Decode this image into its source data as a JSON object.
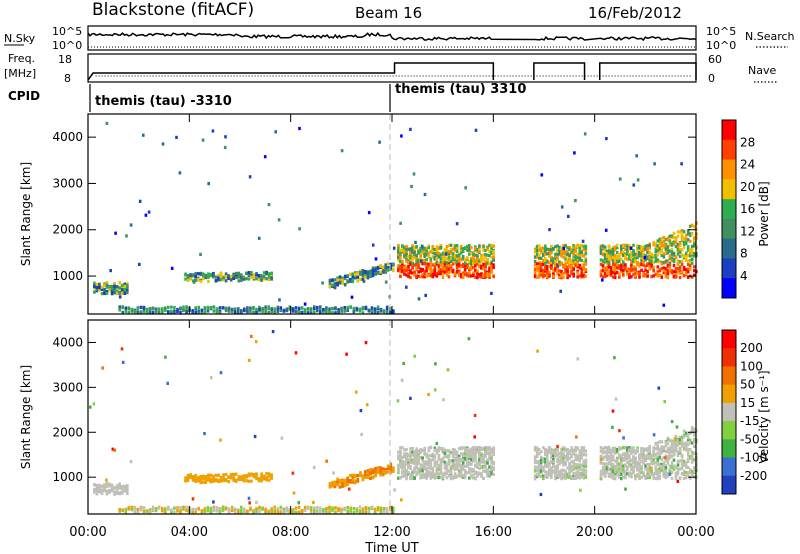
{
  "header": {
    "radar": "Blackstone (fitACF)",
    "beam": "Beam 16",
    "date": "16/Feb/2012"
  },
  "panels": {
    "nsky": {
      "left_label": "N.Sky",
      "tick_top": "10^5",
      "tick_bottom": "10^0",
      "right_tick_top": "10^5",
      "right_tick_bottom": "10^0",
      "right_label": "N.Search"
    },
    "freq": {
      "left_label_1": "Freq.",
      "left_label_2": "[MHz]",
      "tick_top": "18",
      "tick_bottom": "8",
      "right_tick_top": "60",
      "right_tick_bottom": "0",
      "right_label": "Nave"
    },
    "cpid": {
      "label": "CPID",
      "segments": [
        "themis (tau) -3310",
        "themis (tau) 3310"
      ]
    }
  },
  "colors": {
    "power_scale": [
      "#0000ff",
      "#1a3fbf",
      "#2a6a8a",
      "#3f8f5f",
      "#2fae4f",
      "#f0c000",
      "#ff9000",
      "#ff4000",
      "#ff0000"
    ],
    "velocity_scale": [
      "#2040c0",
      "#3a70d0",
      "#40b040",
      "#80d040",
      "#c0c0b8",
      "#f0a000",
      "#f07000",
      "#f03000",
      "#ff0000"
    ]
  },
  "chart_data": [
    {
      "type": "heatmap",
      "name": "power",
      "ylabel": "Slant Range [km]",
      "ylim": [
        180,
        4500
      ],
      "y_ticks": [
        "1000",
        "2000",
        "3000",
        "4000"
      ],
      "x_ticks": [
        "00:00",
        "04:00",
        "08:00",
        "12:00",
        "16:00",
        "20:00",
        "00:00"
      ],
      "colorbar_label": "Power [dB]",
      "colorbar_ticks": [
        "4",
        "8",
        "12",
        "16",
        "20",
        "24",
        "28"
      ],
      "colorbar_range": [
        0,
        30
      ]
    },
    {
      "type": "heatmap",
      "name": "velocity",
      "ylabel": "Slant Range [km]",
      "xlabel": "Time UT",
      "ylim": [
        180,
        4500
      ],
      "y_ticks": [
        "1000",
        "2000",
        "3000",
        "4000"
      ],
      "x_ticks": [
        "00:00",
        "04:00",
        "08:00",
        "12:00",
        "16:00",
        "20:00",
        "00:00"
      ],
      "colorbar_label": "Velocity [m s⁻¹]",
      "colorbar_ticks": [
        "200",
        "100",
        "50",
        "15",
        "-15",
        "-50",
        "-100",
        "-200"
      ]
    }
  ]
}
